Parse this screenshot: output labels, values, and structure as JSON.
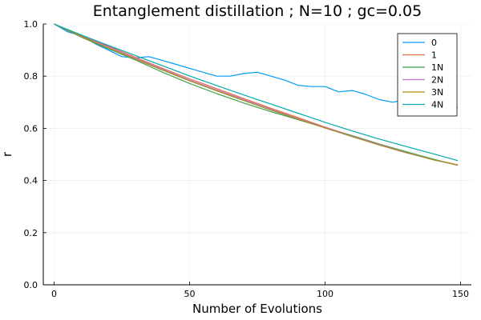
{
  "chart_data": {
    "type": "line",
    "title": "Entanglement distillation ; N=10 ; gc=0.05",
    "xlabel": "Number of Evolutions",
    "ylabel": "r",
    "xlim": [
      -4,
      154
    ],
    "ylim": [
      0.0,
      1.0
    ],
    "x_ticks": [
      0,
      50,
      100,
      150
    ],
    "y_ticks": [
      0.0,
      0.2,
      0.4,
      0.6,
      0.8,
      1.0
    ],
    "x_tick_labels": [
      "0",
      "50",
      "100",
      "150"
    ],
    "y_tick_labels": [
      "0.0",
      "0.2",
      "0.4",
      "0.6",
      "0.8",
      "1.0"
    ],
    "grid": true,
    "legend_position": "top-right",
    "series": [
      {
        "name": "0",
        "color": "#009af9",
        "x": [
          0,
          5,
          10,
          15,
          20,
          25,
          30,
          35,
          40,
          45,
          50,
          55,
          60,
          65,
          70,
          75,
          80,
          85,
          90,
          95,
          100,
          105,
          110,
          115,
          120,
          125,
          130,
          135,
          140,
          145,
          149
        ],
        "y": [
          1.0,
          0.97,
          0.955,
          0.925,
          0.9,
          0.875,
          0.87,
          0.875,
          0.86,
          0.845,
          0.83,
          0.815,
          0.8,
          0.8,
          0.81,
          0.815,
          0.8,
          0.785,
          0.765,
          0.76,
          0.76,
          0.74,
          0.745,
          0.73,
          0.71,
          0.7,
          0.71,
          0.72,
          0.695,
          0.685,
          0.68
        ]
      },
      {
        "name": "1",
        "color": "#e26f46",
        "x": [
          0,
          10,
          20,
          30,
          40,
          50,
          60,
          70,
          80,
          90,
          100,
          110,
          120,
          130,
          140,
          149
        ],
        "y": [
          1.0,
          0.955,
          0.915,
          0.872,
          0.83,
          0.79,
          0.752,
          0.714,
          0.677,
          0.641,
          0.605,
          0.571,
          0.539,
          0.508,
          0.48,
          0.46
        ]
      },
      {
        "name": "1N",
        "color": "#3da44d",
        "x": [
          0,
          10,
          20,
          30,
          40,
          50,
          60,
          70,
          80,
          90,
          100,
          110,
          120,
          130,
          140,
          149
        ],
        "y": [
          1.0,
          0.95,
          0.905,
          0.862,
          0.815,
          0.772,
          0.733,
          0.697,
          0.664,
          0.633,
          0.602,
          0.572,
          0.54,
          0.51,
          0.482,
          0.458
        ]
      },
      {
        "name": "2N",
        "color": "#c271d2",
        "x": [
          0,
          10,
          20,
          30,
          40,
          50,
          60,
          70,
          80,
          90,
          100,
          110,
          120,
          130,
          140,
          149
        ],
        "y": [
          1.0,
          0.954,
          0.912,
          0.868,
          0.826,
          0.785,
          0.747,
          0.71,
          0.673,
          0.637,
          0.603,
          0.57,
          0.538,
          0.507,
          0.479,
          0.459
        ]
      },
      {
        "name": "3N",
        "color": "#ac8d18",
        "x": [
          0,
          10,
          20,
          30,
          40,
          50,
          60,
          70,
          80,
          90,
          100,
          110,
          120,
          130,
          140,
          149
        ],
        "y": [
          1.0,
          0.952,
          0.908,
          0.865,
          0.823,
          0.782,
          0.744,
          0.706,
          0.67,
          0.635,
          0.601,
          0.568,
          0.536,
          0.506,
          0.479,
          0.459
        ]
      },
      {
        "name": "4N",
        "color": "#00a9ad",
        "x": [
          0,
          10,
          20,
          30,
          40,
          50,
          60,
          70,
          80,
          90,
          100,
          110,
          120,
          130,
          140,
          149
        ],
        "y": [
          1.0,
          0.958,
          0.918,
          0.879,
          0.84,
          0.801,
          0.764,
          0.728,
          0.693,
          0.658,
          0.623,
          0.59,
          0.559,
          0.53,
          0.502,
          0.476
        ]
      }
    ]
  }
}
